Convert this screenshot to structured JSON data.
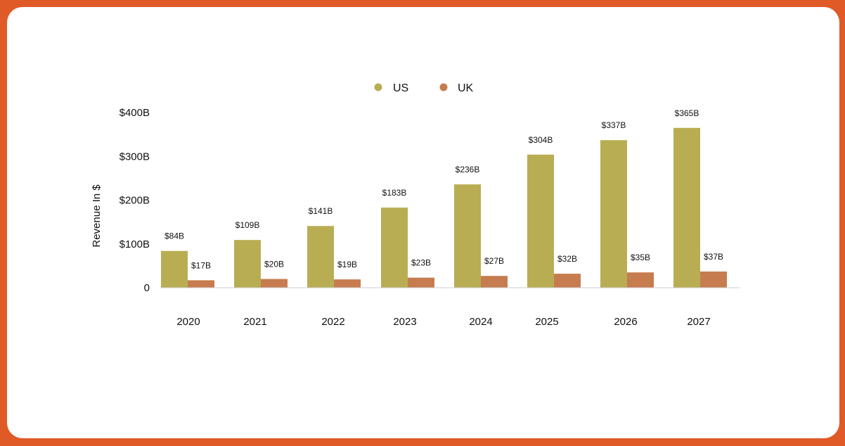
{
  "colors": {
    "frame": "#E05A27",
    "card": "#FFFFFF",
    "us": "#B9AD54",
    "uk": "#C67C4F",
    "axis": "#CCCCCC"
  },
  "chart_data": {
    "type": "bar",
    "title": "",
    "xlabel": "",
    "ylabel": "Revenue In $",
    "categories": [
      "2020",
      "2021",
      "2022",
      "2023",
      "2024",
      "2025",
      "2026",
      "2027"
    ],
    "series": [
      {
        "name": "US",
        "color": "#B9AD54",
        "values": [
          84,
          109,
          141,
          183,
          236,
          304,
          337,
          365
        ],
        "labels": [
          "$84B",
          "$109B",
          "$141B",
          "$183B",
          "$236B",
          "$304B",
          "$337B",
          "$365B"
        ]
      },
      {
        "name": "UK",
        "color": "#C67C4F",
        "values": [
          17,
          20,
          19,
          23,
          27,
          32,
          35,
          37
        ],
        "labels": [
          "$17B",
          "$20B",
          "$19B",
          "$23B",
          "$27B",
          "$32B",
          "$35B",
          "$37B"
        ]
      }
    ],
    "y_ticks": [
      {
        "value": 0,
        "label": "0"
      },
      {
        "value": 100,
        "label": "$100B"
      },
      {
        "value": 200,
        "label": "$200B"
      },
      {
        "value": 300,
        "label": "$300B"
      },
      {
        "value": 400,
        "label": "$400B"
      }
    ],
    "ylim": [
      0,
      400
    ],
    "grid": false,
    "legend_position": "top-center"
  }
}
